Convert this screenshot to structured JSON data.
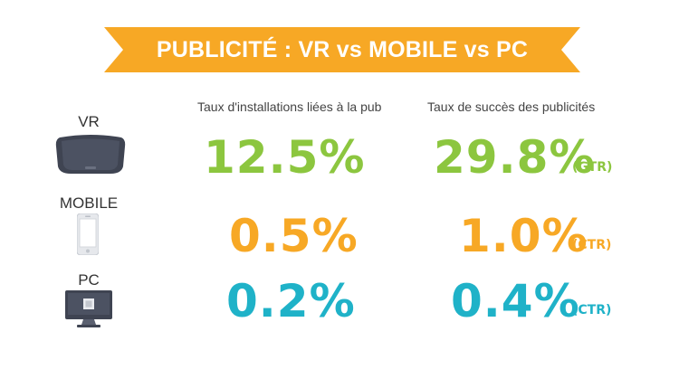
{
  "header": {
    "title": "PUBLICITÉ : VR vs MOBILE vs PC"
  },
  "colors": {
    "banner": "#f7a825",
    "vr": "#8cc63f",
    "mobile": "#f7a825",
    "pc": "#1fb2c8"
  },
  "chart_data": {
    "type": "table",
    "title": "PUBLICITÉ : VR vs MOBILE vs PC",
    "columns": [
      "Taux d'installations liées à la pub",
      "Taux de succès des publicités"
    ],
    "rows": [
      {
        "label": "VR",
        "icon": "vr-headset-icon",
        "install_rate": "12.5%",
        "success_rate": "29.8%",
        "metric": "(GTR)",
        "install_value": 12.5,
        "success_value": 29.8
      },
      {
        "label": "MOBILE",
        "icon": "smartphone-icon",
        "install_rate": "0.5%",
        "success_rate": "1.0%",
        "metric": "(CTR)",
        "install_value": 0.5,
        "success_value": 1.0
      },
      {
        "label": "PC",
        "icon": "desktop-monitor-icon",
        "install_rate": "0.2%",
        "success_rate": "0.4%",
        "metric": "(CTR)",
        "install_value": 0.2,
        "success_value": 0.4
      }
    ]
  }
}
